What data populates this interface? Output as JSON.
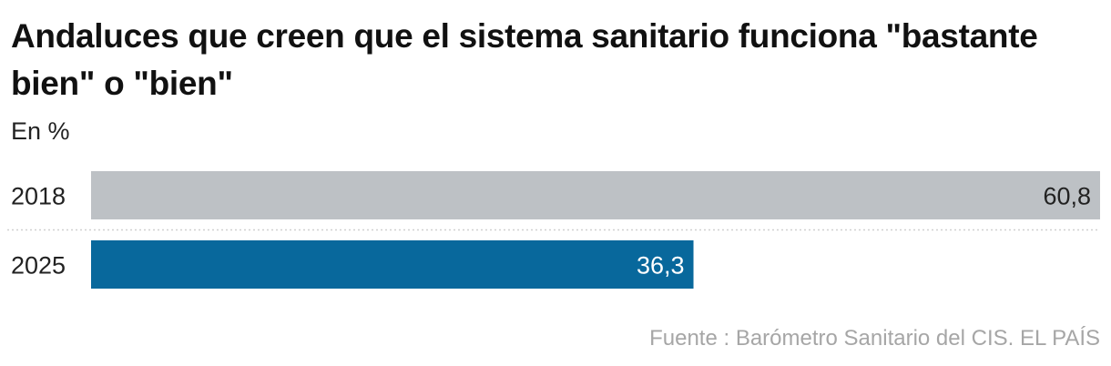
{
  "title": "Andaluces que creen que el sistema sanitario funciona \"bastante bien\" o \"bien\"",
  "subtitle": "En %",
  "source": "Fuente : Barómetro Sanitario del CIS. EL PAÍS",
  "chart_data": {
    "type": "bar",
    "orientation": "horizontal",
    "categories": [
      "2018",
      "2025"
    ],
    "values": [
      60.8,
      36.3
    ],
    "value_labels": [
      "60,8",
      "36,3"
    ],
    "colors": [
      "#bdc1c5",
      "#08689c"
    ],
    "label_colors": [
      "#222222",
      "#ffffff"
    ],
    "xlim": [
      0,
      60.8
    ],
    "grid": false,
    "legend": "none"
  }
}
